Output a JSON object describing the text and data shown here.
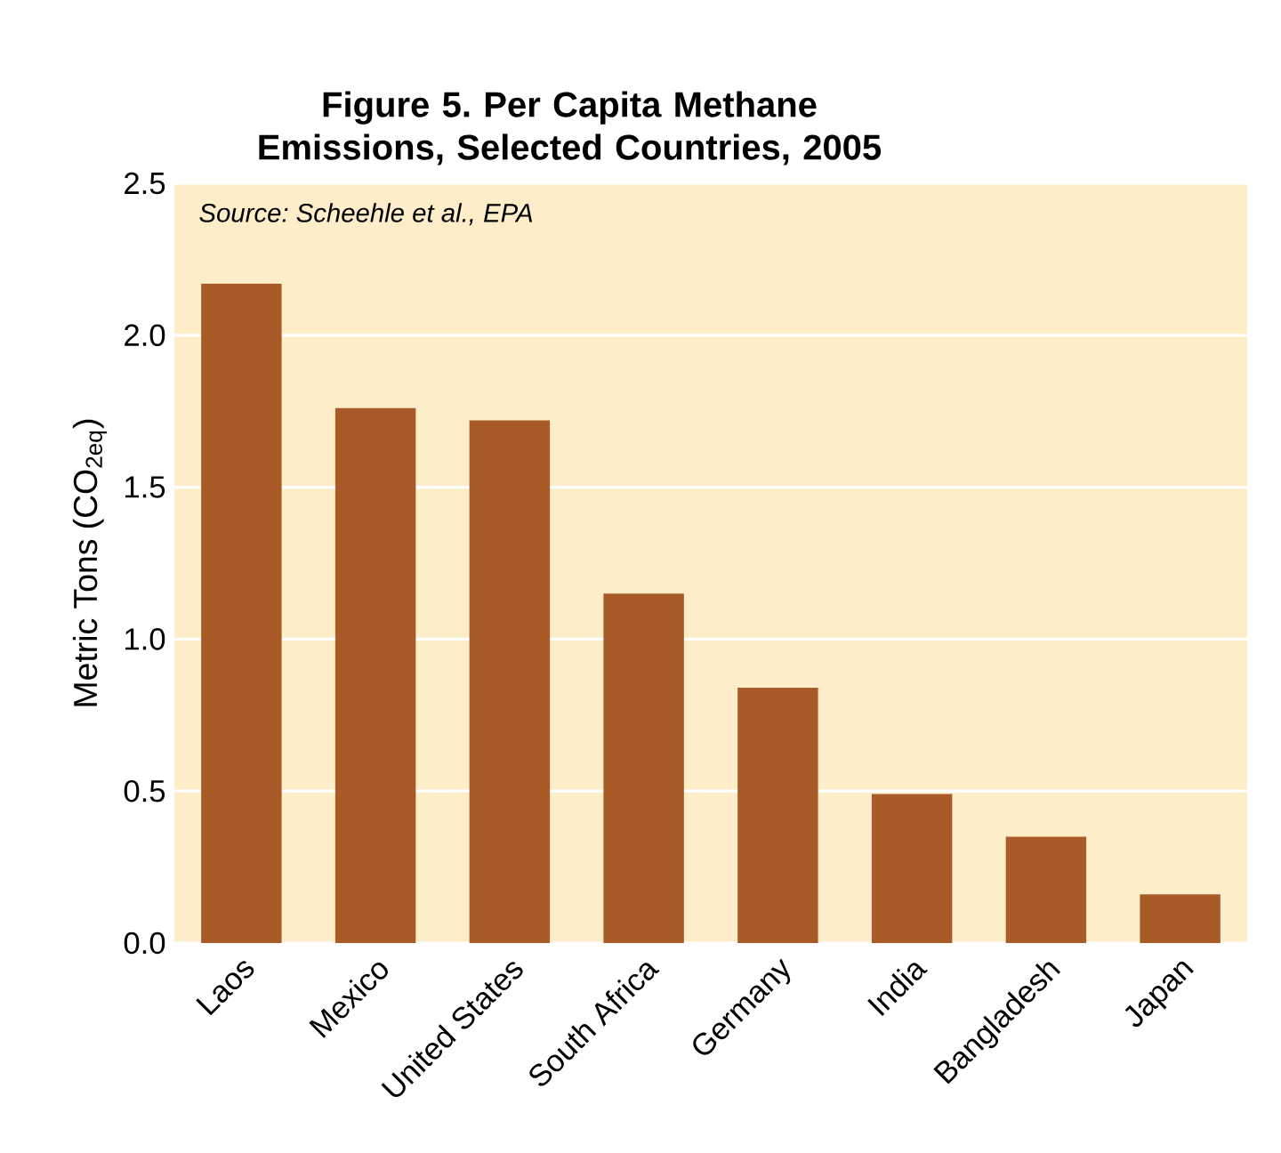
{
  "chart_data": {
    "type": "bar",
    "title": "Figure 5. Per Capita Methane Emissions, Selected Countries, 2005",
    "ylabel": "Metric Tons (CO$_{2eq}$)",
    "annotations": [
      "Source: Scheehle et al., EPA"
    ],
    "categories": [
      "Laos",
      "Mexico",
      "United States",
      "South Africa",
      "Germany",
      "India",
      "Bangladesh",
      "Japan"
    ],
    "values": [
      2.17,
      1.76,
      1.72,
      1.15,
      0.84,
      0.49,
      0.35,
      0.16
    ],
    "color": "#a95b27",
    "ylim": [
      0,
      2.5
    ],
    "yticks": [
      {
        "value": 0,
        "label": "0.0"
      },
      {
        "value": 0.5,
        "label": "0.5"
      },
      {
        "value": 1,
        "label": "1.0"
      },
      {
        "value": 1.5,
        "label": "1.5"
      },
      {
        "value": 2,
        "label": "2.0"
      },
      {
        "value": 2.5,
        "label": "2.5"
      }
    ],
    "grid": "y"
  }
}
